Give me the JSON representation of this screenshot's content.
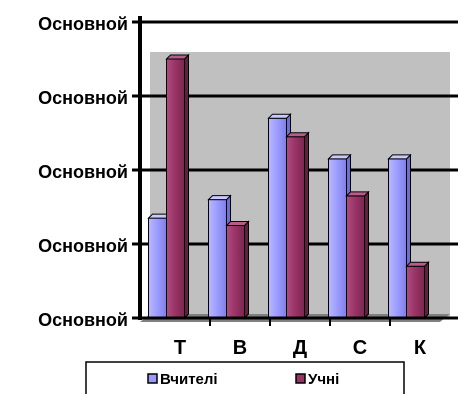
{
  "chart_data": {
    "type": "bar",
    "categories": [
      "Т",
      "В",
      "Д",
      "С",
      "К"
    ],
    "y_tick_labels": [
      "Основной",
      "Основной",
      "Основной",
      "Основной",
      "Основной"
    ],
    "ylim": [
      0,
      4
    ],
    "grid": "horizontal",
    "legend_position": "bottom",
    "series": [
      {
        "name": "Вчителі",
        "color": "#9b9bff",
        "values": [
          1.35,
          1.6,
          2.7,
          2.15,
          2.15
        ]
      },
      {
        "name": "Учні",
        "color": "#993366",
        "values": [
          3.5,
          1.25,
          2.45,
          1.65,
          0.7
        ]
      }
    ],
    "plot_background": "#c0c0c0"
  }
}
